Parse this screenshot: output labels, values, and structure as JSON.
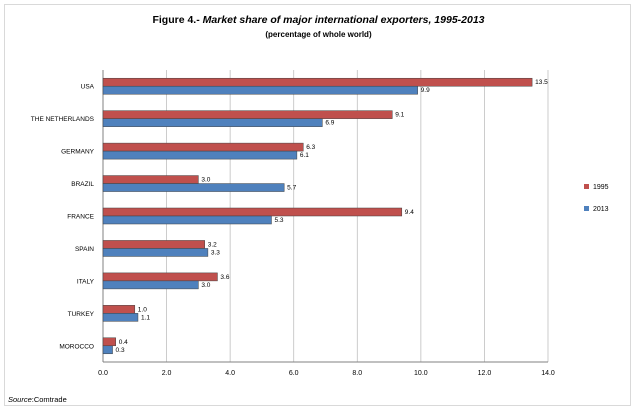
{
  "title_number": "Figure 4.-",
  "title_text": "Market share of major international exporters, 1995-2013",
  "subtitle": "(percentage of whole world)",
  "source_label": "Source",
  "source_text": ":Comtrade",
  "colors": {
    "s1995": "#c0504d",
    "s2013": "#4f81bd",
    "grid": "#bfbfbf"
  },
  "chart_data": {
    "type": "bar",
    "orientation": "horizontal",
    "categories": [
      "USA",
      "THE NETHERLANDS",
      "GERMANY",
      "BRAZIL",
      "FRANCE",
      "SPAIN",
      "ITALY",
      "TURKEY",
      "MOROCCO"
    ],
    "series": [
      {
        "name": "1995",
        "values": [
          13.5,
          9.1,
          6.3,
          3.0,
          9.4,
          3.2,
          3.6,
          1.0,
          0.4
        ],
        "labels": [
          "13.5",
          "9.1",
          "6.3",
          "3.0",
          "9.4",
          "3.2",
          "3.6",
          "1.0",
          "0.4"
        ]
      },
      {
        "name": "2013",
        "values": [
          9.9,
          6.9,
          6.1,
          5.7,
          5.3,
          3.3,
          3.0,
          1.1,
          0.3
        ],
        "labels": [
          "9.9",
          "6.9",
          "6.1",
          "5.7",
          "5.3",
          "3.3",
          "3.0",
          "1.1",
          "0.3"
        ]
      }
    ],
    "xlim": [
      0,
      14
    ],
    "xticks": [
      "0.0",
      "2.0",
      "4.0",
      "6.0",
      "8.0",
      "10.0",
      "12.0",
      "14.0"
    ],
    "grid": true,
    "legend_position": "right"
  }
}
